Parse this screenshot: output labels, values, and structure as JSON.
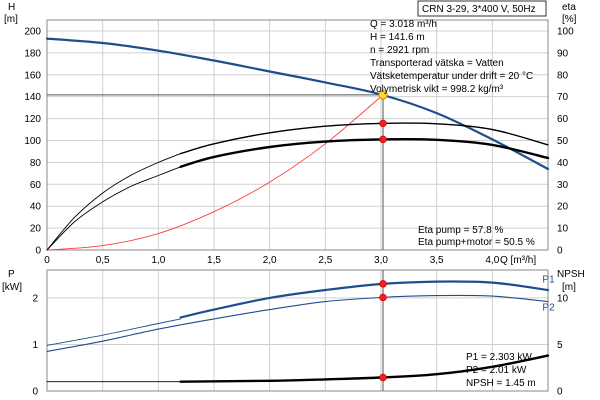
{
  "chart_data": [
    {
      "type": "line",
      "panel": "performance",
      "title": "CRN 3-29, 3*400 V, 50Hz",
      "left_axis": {
        "label": "H",
        "unit": "[m]",
        "ticks": [
          "0",
          "20",
          "40",
          "60",
          "80",
          "100",
          "120",
          "140",
          "160",
          "180",
          "200"
        ],
        "ylim": [
          0,
          210
        ]
      },
      "right_axis": {
        "label": "eta",
        "unit": "[%]",
        "ticks": [
          "0",
          "10",
          "20",
          "30",
          "40",
          "50",
          "60",
          "70",
          "80",
          "90",
          "100"
        ],
        "ylim": [
          0,
          105
        ]
      },
      "x_axis": {
        "label": "Q [m³/h]",
        "ticks": [
          "0",
          "0,5",
          "1,0",
          "1,5",
          "2,0",
          "2,5",
          "3,0",
          "3,5",
          "4,0"
        ],
        "xlim": [
          0,
          4.5
        ]
      },
      "grid": true,
      "info_lines": [
        "Q = 3.018 m³/h",
        "H = 141.6 m",
        "n = 2921 rpm",
        "Transporterad vätska = Vatten",
        "Vätsketemperatur under drift = 20 °C",
        "Volymetrisk vikt = 998.2 kg/m³"
      ],
      "eta_lines": [
        "Eta pump = 57.8 %",
        "Eta pump+motor = 50.5 %"
      ],
      "duty_point": {
        "q": 3.018,
        "h": 141.6
      },
      "series": [
        {
          "role": "head-curve",
          "axis": "left",
          "color": "#1f4e8c",
          "x": [
            0,
            0.5,
            1.0,
            1.5,
            2.0,
            2.5,
            3.0,
            3.5,
            4.0,
            4.5
          ],
          "y": [
            193,
            189,
            182,
            173,
            163,
            153,
            142,
            125,
            101,
            74
          ]
        },
        {
          "role": "system-curve",
          "axis": "left",
          "color": "#ff3b3b",
          "x": [
            0,
            0.5,
            1.0,
            1.5,
            2.0,
            2.5,
            3.018
          ],
          "y": [
            0,
            4,
            15,
            35,
            62,
            97,
            141.6
          ]
        },
        {
          "role": "eta-pump-thin",
          "axis": "right",
          "color": "#000000",
          "x": [
            0,
            0.25,
            0.5,
            0.75,
            1.0,
            1.2
          ],
          "y": [
            0,
            15,
            26,
            34,
            40,
            44
          ]
        },
        {
          "role": "eta-pump",
          "axis": "right",
          "color": "#000000",
          "x": [
            1.2,
            1.5,
            2.0,
            2.5,
            3.0,
            3.5,
            4.0,
            4.5
          ],
          "y": [
            44,
            48.5,
            53.5,
            56.5,
            57.8,
            57.6,
            55,
            48
          ]
        },
        {
          "role": "eta-pump-motor-thin",
          "axis": "right",
          "color": "#000000",
          "x": [
            0,
            0.25,
            0.5,
            0.75,
            1.0,
            1.2
          ],
          "y": [
            0,
            13,
            22,
            29,
            34,
            38
          ]
        },
        {
          "role": "eta-pump-motor",
          "axis": "right",
          "color": "#000000",
          "x": [
            1.2,
            1.5,
            2.0,
            2.5,
            3.0,
            3.5,
            4.0,
            4.5
          ],
          "y": [
            38,
            42.5,
            47,
            49.5,
            50.5,
            50.3,
            48,
            42
          ]
        }
      ],
      "markers": [
        {
          "axis": "left",
          "x": 3.018,
          "y": 141.6,
          "style": "duty"
        },
        {
          "axis": "right",
          "x": 3.018,
          "y": 57.8,
          "style": "point"
        },
        {
          "axis": "right",
          "x": 3.018,
          "y": 50.5,
          "style": "point"
        }
      ]
    },
    {
      "type": "line",
      "panel": "power-npsh",
      "left_axis": {
        "label": "P",
        "unit": "[kW]",
        "ticks": [
          "0",
          "1",
          "2"
        ],
        "ylim": [
          0,
          2.6
        ]
      },
      "right_axis": {
        "label": "NPSH",
        "unit": "[m]",
        "ticks": [
          "0",
          "5",
          "10"
        ],
        "ylim": [
          0,
          13
        ]
      },
      "xlim": [
        0,
        4.5
      ],
      "grid": true,
      "info_lines": [
        "P1 = 2.303 kW",
        "P2 = 2.01 kW",
        "NPSH = 1.45 m"
      ],
      "series": [
        {
          "name": "P1",
          "role": "p1-thin",
          "axis": "left",
          "color": "#1f4e8c",
          "x": [
            0,
            0.5,
            1.0,
            1.2
          ],
          "y": [
            0.98,
            1.2,
            1.45,
            1.55
          ]
        },
        {
          "name": "P1",
          "role": "p1",
          "axis": "left",
          "color": "#1f4e8c",
          "x": [
            1.2,
            1.5,
            2.0,
            2.5,
            3.0,
            3.5,
            4.0,
            4.5
          ],
          "y": [
            1.58,
            1.75,
            2.0,
            2.17,
            2.3,
            2.35,
            2.33,
            2.17
          ]
        },
        {
          "name": "P2",
          "role": "p2",
          "axis": "left",
          "color": "#1f4e8c",
          "x": [
            0,
            0.5,
            1.0,
            1.5,
            2.0,
            2.5,
            3.0,
            3.5,
            4.0,
            4.5
          ],
          "y": [
            0.85,
            1.07,
            1.33,
            1.55,
            1.75,
            1.92,
            2.01,
            2.05,
            2.04,
            1.92
          ]
        },
        {
          "name": "NPSH",
          "role": "npsh-thin",
          "axis": "right",
          "color": "#000000",
          "x": [
            0,
            0.5,
            1.0,
            1.2
          ],
          "y": [
            1.0,
            1.0,
            1.0,
            1.0
          ]
        },
        {
          "name": "NPSH",
          "role": "npsh",
          "axis": "right",
          "color": "#000000",
          "x": [
            1.2,
            2.0,
            2.5,
            3.0,
            3.5,
            4.0,
            4.5
          ],
          "y": [
            1.0,
            1.1,
            1.25,
            1.45,
            1.8,
            2.6,
            3.8
          ]
        }
      ],
      "series_labels": [
        {
          "text": "P1",
          "axis": "left",
          "x": 4.45,
          "y": 2.33
        },
        {
          "text": "P2",
          "axis": "left",
          "x": 4.45,
          "y": 1.73
        }
      ],
      "markers": [
        {
          "axis": "left",
          "x": 3.018,
          "y": 2.303,
          "style": "point"
        },
        {
          "axis": "left",
          "x": 3.018,
          "y": 2.01,
          "style": "point"
        },
        {
          "axis": "right",
          "x": 3.018,
          "y": 1.45,
          "style": "point"
        }
      ]
    }
  ]
}
